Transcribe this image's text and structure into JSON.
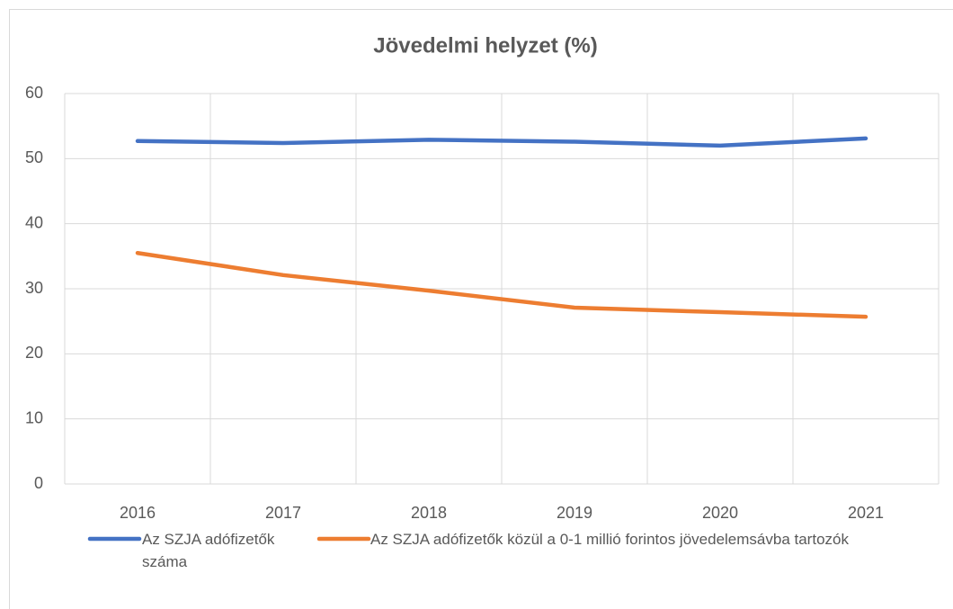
{
  "chart_data": {
    "type": "line",
    "title": "Jövedelmi helyzet (%)",
    "categories": [
      "2016",
      "2017",
      "2018",
      "2019",
      "2020",
      "2021"
    ],
    "series": [
      {
        "name": "Az SZJA adófizetők száma",
        "color": "#4472c4",
        "values": [
          52.7,
          52.4,
          52.9,
          52.6,
          52.0,
          53.1
        ]
      },
      {
        "name": "Az SZJA adófizetők közül a 0-1 millió forintos jövedelemsávba tartozók",
        "color": "#ed7d31",
        "values": [
          35.5,
          32.1,
          29.7,
          27.1,
          26.4,
          25.7
        ]
      }
    ],
    "ylim": [
      0,
      60
    ],
    "yticks": [
      0,
      10,
      20,
      30,
      40,
      50,
      60
    ],
    "grid": true,
    "legend": "bottom"
  }
}
